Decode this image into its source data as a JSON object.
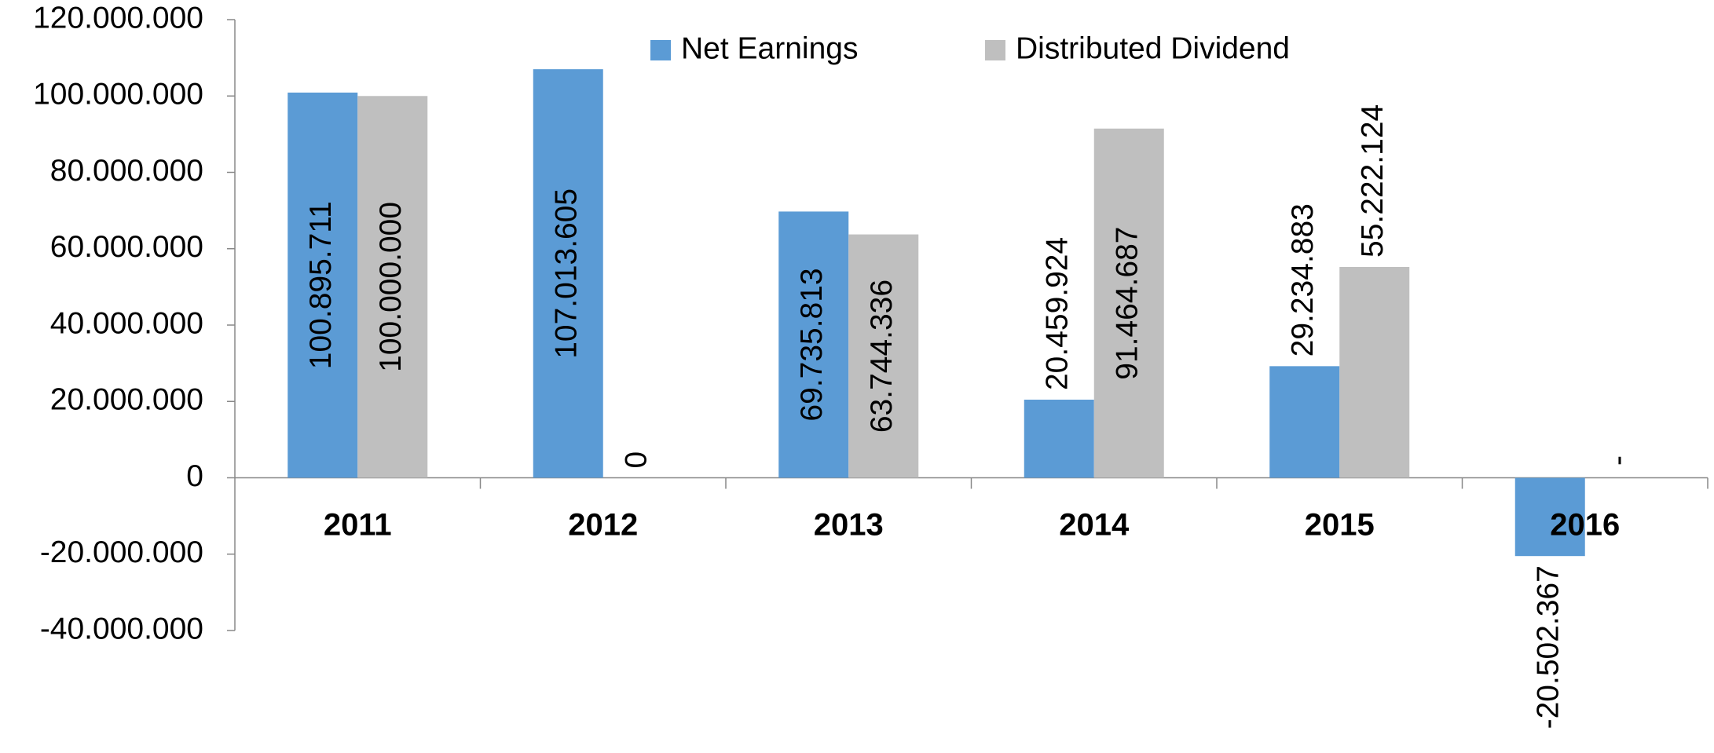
{
  "chart_data": {
    "type": "bar",
    "categories": [
      "2011",
      "2012",
      "2013",
      "2014",
      "2015",
      "2016"
    ],
    "series": [
      {
        "name": "Net Earnings",
        "color": "#5b9bd5",
        "values": [
          100895711,
          107013605,
          69735813,
          20459924,
          29234883,
          -20502367
        ],
        "value_labels": [
          "100.895.711",
          "107.013.605",
          "69.735.813",
          "20.459.924",
          "29.234.883",
          "-20.502.367"
        ]
      },
      {
        "name": "Distributed Dividend",
        "color": "#bfbfbf",
        "values": [
          100000000,
          0,
          63744336,
          91464687,
          55222124,
          null
        ],
        "value_labels": [
          "100.000.000",
          "0",
          "63.744.336",
          "91.464.687",
          "55.222.124",
          "-"
        ]
      }
    ],
    "ylim": [
      -40000000,
      120000000
    ],
    "yticks": [
      {
        "value": -40000000,
        "label": "-40.000.000"
      },
      {
        "value": -20000000,
        "label": "-20.000.000"
      },
      0,
      {
        "value": 20000000,
        "label": "20.000.000"
      },
      {
        "value": 40000000,
        "label": "40.000.000"
      },
      {
        "value": 60000000,
        "label": "60.000.000"
      },
      {
        "value": 80000000,
        "label": "80.000.000"
      },
      {
        "value": 100000000,
        "label": "100.000.000"
      },
      {
        "value": 120000000,
        "label": "120.000.000"
      }
    ],
    "grid": false,
    "legend": "top"
  }
}
